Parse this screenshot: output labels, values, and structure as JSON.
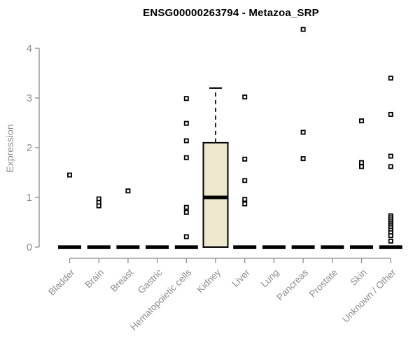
{
  "title": "ENSG00000263794 - Metazoa_SRP",
  "chart_data": {
    "type": "boxplot",
    "title": "ENSG00000263794 - Metazoa_SRP",
    "xlabel": "",
    "ylabel": "Expression",
    "ylim": [
      0,
      4.5
    ],
    "yticks": [
      0,
      1,
      2,
      3,
      4
    ],
    "grid": false,
    "legend": false,
    "axis_color": "#8C8C8C",
    "box_fill_color": "#EDE8CD",
    "box_line_color": "#000000",
    "outlier_marker": "open-square",
    "categories": [
      "Bladder",
      "Brain",
      "Breast",
      "Gastric",
      "Hematopoietic cells",
      "Kidney",
      "Liver",
      "Lung",
      "Pancreas",
      "Prostate",
      "Skin",
      "Unknown / Other"
    ],
    "boxes": [
      {
        "category": "Bladder",
        "whisker_low": 0,
        "q1": 0,
        "median": 0,
        "q3": 0,
        "whisker_high": 0,
        "outliers": [
          1.45
        ]
      },
      {
        "category": "Brain",
        "whisker_low": 0,
        "q1": 0,
        "median": 0,
        "q3": 0,
        "whisker_high": 0,
        "outliers": [
          0.97,
          0.9,
          0.83
        ]
      },
      {
        "category": "Breast",
        "whisker_low": 0,
        "q1": 0,
        "median": 0,
        "q3": 0,
        "whisker_high": 0,
        "outliers": [
          1.13
        ]
      },
      {
        "category": "Gastric",
        "whisker_low": 0,
        "q1": 0,
        "median": 0,
        "q3": 0,
        "whisker_high": 0,
        "outliers": []
      },
      {
        "category": "Hematopoietic cells",
        "whisker_low": 0,
        "q1": 0,
        "median": 0,
        "q3": 0,
        "whisker_high": 0,
        "outliers": [
          2.99,
          2.49,
          2.14,
          1.8,
          0.8,
          0.7,
          0.21
        ]
      },
      {
        "category": "Kidney",
        "whisker_low": 0,
        "q1": 0,
        "median": 1.0,
        "q3": 2.1,
        "whisker_high": 3.2,
        "outliers": []
      },
      {
        "category": "Liver",
        "whisker_low": 0,
        "q1": 0,
        "median": 0,
        "q3": 0,
        "whisker_high": 0,
        "outliers": [
          3.02,
          1.77,
          1.34,
          0.96,
          0.87
        ]
      },
      {
        "category": "Lung",
        "whisker_low": 0,
        "q1": 0,
        "median": 0,
        "q3": 0,
        "whisker_high": 0,
        "outliers": []
      },
      {
        "category": "Pancreas",
        "whisker_low": 0,
        "q1": 0,
        "median": 0,
        "q3": 0,
        "whisker_high": 0,
        "outliers": [
          4.38,
          2.31,
          1.78
        ]
      },
      {
        "category": "Prostate",
        "whisker_low": 0,
        "q1": 0,
        "median": 0,
        "q3": 0,
        "whisker_high": 0,
        "outliers": []
      },
      {
        "category": "Skin",
        "whisker_low": 0,
        "q1": 0,
        "median": 0,
        "q3": 0,
        "whisker_high": 0,
        "outliers": [
          2.54,
          1.7,
          1.62
        ]
      },
      {
        "category": "Unknown / Other",
        "whisker_low": 0,
        "q1": 0,
        "median": 0,
        "q3": 0,
        "whisker_high": 0,
        "outliers": [
          3.4,
          2.67,
          1.83,
          1.62,
          0.63,
          0.59,
          0.55,
          0.51,
          0.47,
          0.43,
          0.39,
          0.34,
          0.29,
          0.23,
          0.12
        ]
      }
    ]
  }
}
